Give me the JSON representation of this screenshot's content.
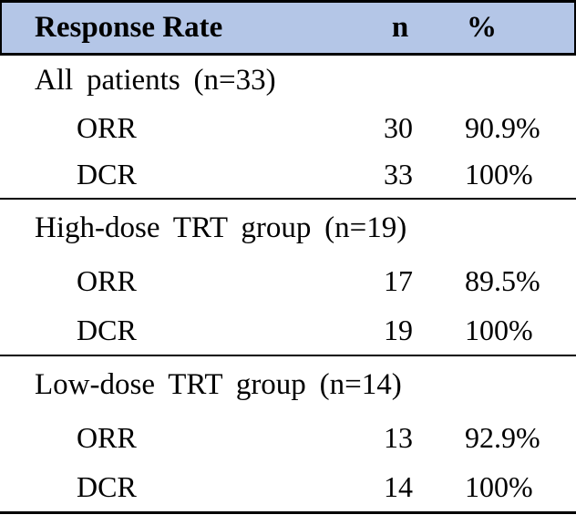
{
  "table": {
    "header": {
      "label": "Response Rate",
      "n": "n",
      "pct": "%"
    },
    "sections": [
      {
        "label": "All patients (n=33)",
        "rows": [
          {
            "name": "ORR",
            "n": "30",
            "pct": "90.9%"
          },
          {
            "name": "DCR",
            "n": "33",
            "pct": "100%"
          }
        ]
      },
      {
        "label": "High-dose TRT group (n=19)",
        "rows": [
          {
            "name": "ORR",
            "n": "17",
            "pct": "89.5%"
          },
          {
            "name": "DCR",
            "n": "19",
            "pct": "100%"
          }
        ]
      },
      {
        "label": "Low-dose TRT group (n=14)",
        "rows": [
          {
            "name": "ORR",
            "n": "13",
            "pct": "92.9%"
          },
          {
            "name": "DCR",
            "n": "14",
            "pct": "100%"
          }
        ]
      }
    ]
  },
  "chart_data": {
    "type": "table",
    "title": "Response Rate",
    "columns": [
      "Response Rate",
      "n",
      "%"
    ],
    "groups": [
      {
        "group": "All patients",
        "group_n": 33,
        "rows": [
          {
            "measure": "ORR",
            "n": 30,
            "pct": 90.9
          },
          {
            "measure": "DCR",
            "n": 33,
            "pct": 100
          }
        ]
      },
      {
        "group": "High-dose TRT group",
        "group_n": 19,
        "rows": [
          {
            "measure": "ORR",
            "n": 17,
            "pct": 89.5
          },
          {
            "measure": "DCR",
            "n": 19,
            "pct": 100
          }
        ]
      },
      {
        "group": "Low-dose TRT group",
        "group_n": 14,
        "rows": [
          {
            "measure": "ORR",
            "n": 13,
            "pct": 92.9
          },
          {
            "measure": "DCR",
            "n": 14,
            "pct": 100
          }
        ]
      }
    ]
  },
  "colors": {
    "header_bg": "#b4c6e7",
    "border_color": "#000000",
    "text_color": "#000000"
  }
}
